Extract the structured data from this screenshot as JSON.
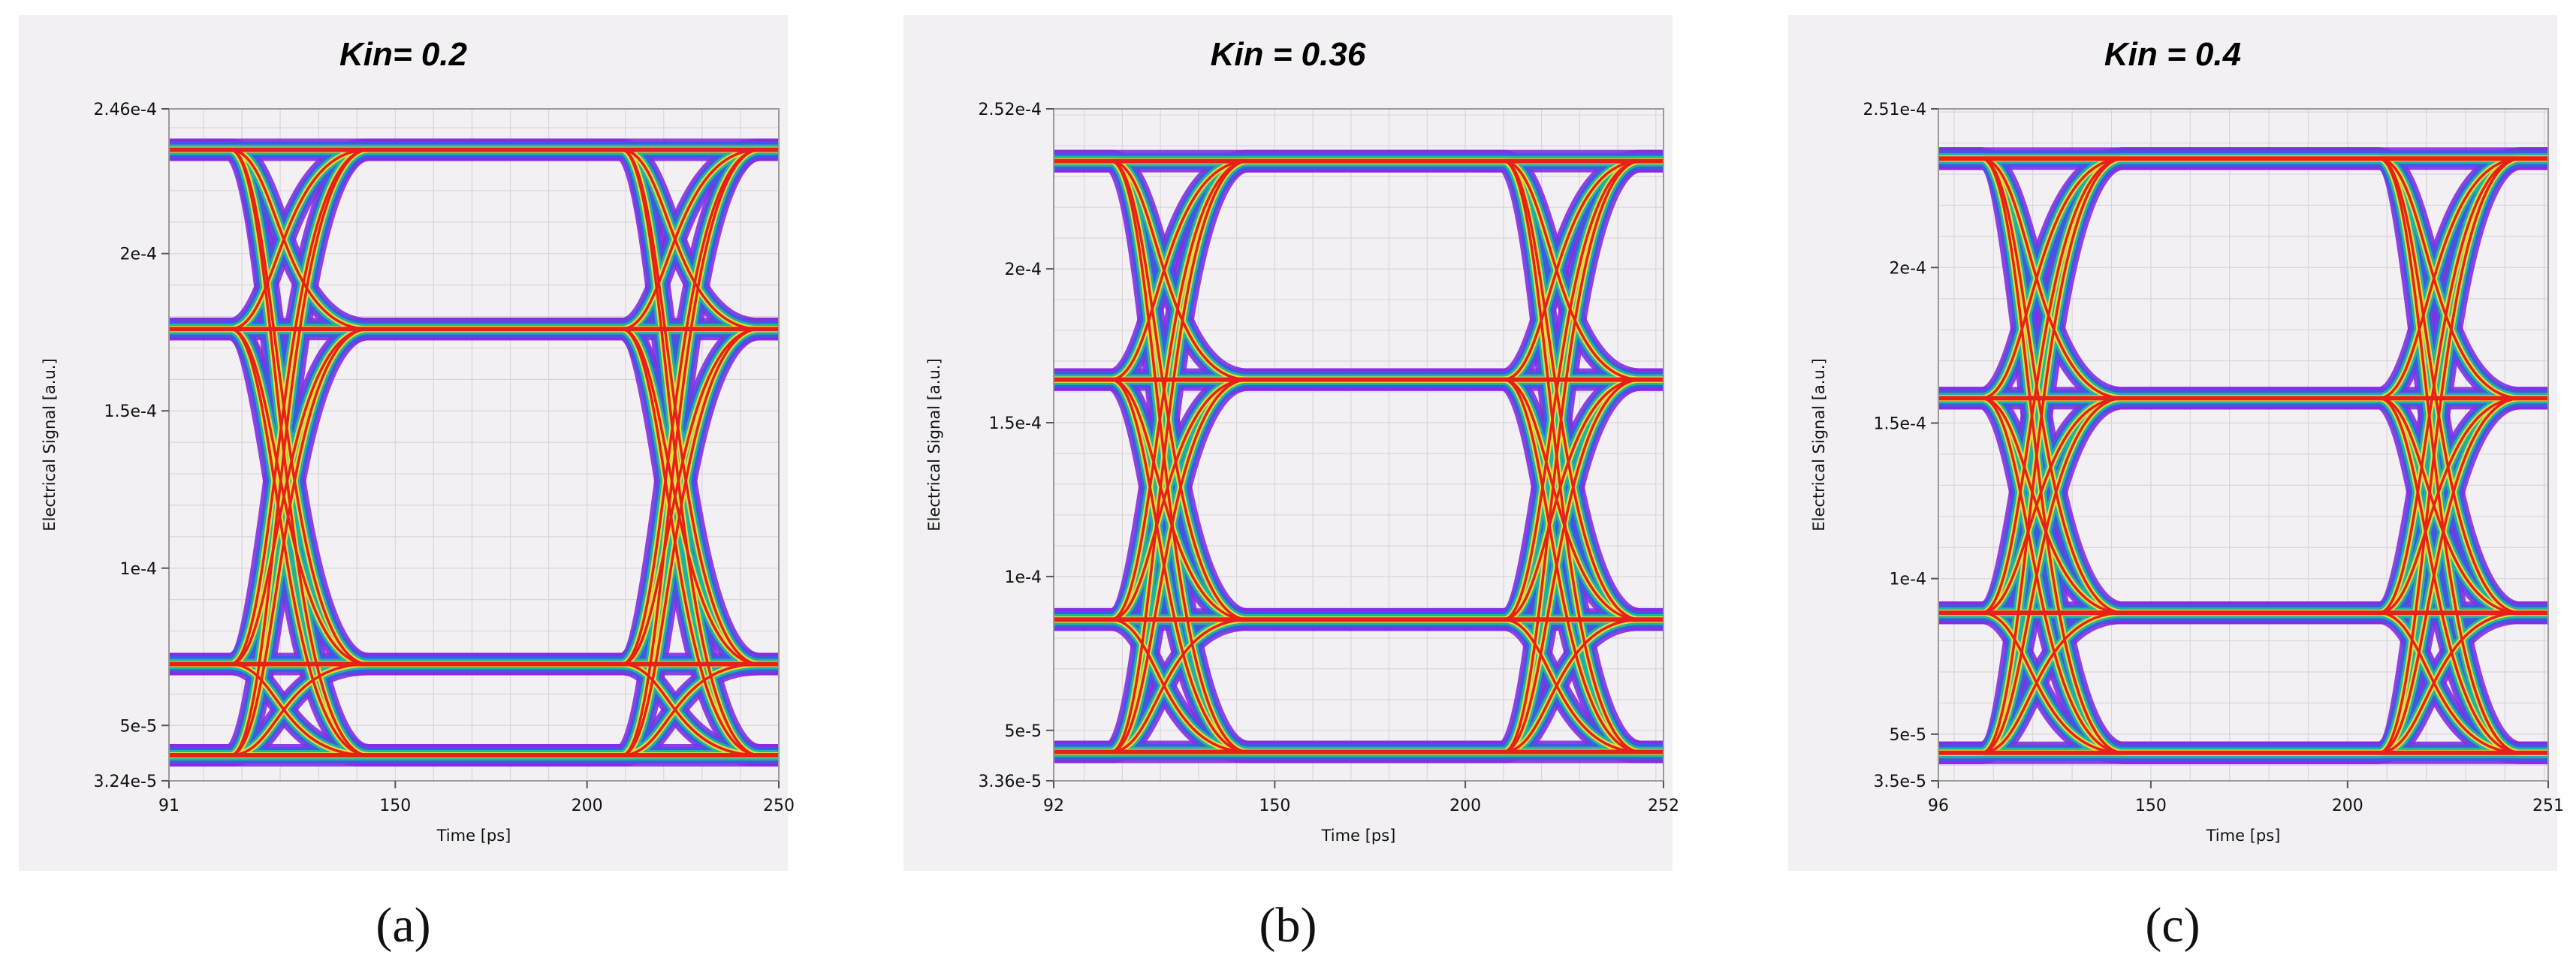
{
  "chart_data": [
    {
      "type": "line",
      "subtype": "eye-diagram",
      "panel_label": "(a)",
      "title": "Kin= 0.2",
      "xlabel": "Time [ps]",
      "ylabel": "Electrical Signal [a.u.]",
      "xlim": [
        91,
        250
      ],
      "ylim": [
        3.24e-05,
        0.000246
      ],
      "xticks": [
        {
          "v": 91,
          "label": "91"
        },
        {
          "v": 150,
          "label": "150"
        },
        {
          "v": 200,
          "label": "200"
        },
        {
          "v": 250,
          "label": "250"
        }
      ],
      "yticks": [
        {
          "v": 3.24e-05,
          "label": "3.24e-5"
        },
        {
          "v": 5e-05,
          "label": "5e-5"
        },
        {
          "v": 0.0001,
          "label": "1e-4"
        },
        {
          "v": 0.00015,
          "label": "1.5e-4"
        },
        {
          "v": 0.0002,
          "label": "2e-4"
        },
        {
          "v": 0.000246,
          "label": "2.46e-4"
        }
      ],
      "grid": true,
      "levels": [
        4.05e-05,
        6.95e-05,
        0.000176,
        0.000233
      ],
      "crossings_ps": [
        125,
        227
      ]
    },
    {
      "type": "line",
      "subtype": "eye-diagram",
      "panel_label": "(b)",
      "title": "Kin = 0.36",
      "xlabel": "Time [ps]",
      "ylabel": "Electrical Signal [a.u.]",
      "xlim": [
        92,
        252
      ],
      "ylim": [
        3.36e-05,
        0.000252
      ],
      "xticks": [
        {
          "v": 92,
          "label": "92"
        },
        {
          "v": 150,
          "label": "150"
        },
        {
          "v": 200,
          "label": "200"
        },
        {
          "v": 252,
          "label": "252"
        }
      ],
      "yticks": [
        {
          "v": 3.36e-05,
          "label": "3.36e-5"
        },
        {
          "v": 5e-05,
          "label": "5e-5"
        },
        {
          "v": 0.0001,
          "label": "1e-4"
        },
        {
          "v": 0.00015,
          "label": "1.5e-4"
        },
        {
          "v": 0.0002,
          "label": "2e-4"
        },
        {
          "v": 0.000252,
          "label": "2.52e-4"
        }
      ],
      "grid": true,
      "levels": [
        4.3e-05,
        8.6e-05,
        0.000164,
        0.000235
      ],
      "crossings_ps": [
        125,
        228
      ]
    },
    {
      "type": "line",
      "subtype": "eye-diagram",
      "panel_label": "(c)",
      "title": "Kin = 0.4",
      "xlabel": "Time [ps]",
      "ylabel": "Electrical Signal [a.u.]",
      "xlim": [
        96,
        251
      ],
      "ylim": [
        3.5e-05,
        0.000251
      ],
      "xticks": [
        {
          "v": 96,
          "label": "96"
        },
        {
          "v": 150,
          "label": "150"
        },
        {
          "v": 200,
          "label": "200"
        },
        {
          "v": 251,
          "label": "251"
        }
      ],
      "yticks": [
        {
          "v": 3.5e-05,
          "label": "3.5e-5"
        },
        {
          "v": 5e-05,
          "label": "5e-5"
        },
        {
          "v": 0.0001,
          "label": "1e-4"
        },
        {
          "v": 0.00015,
          "label": "1.5e-4"
        },
        {
          "v": 0.0002,
          "label": "2e-4"
        },
        {
          "v": 0.000251,
          "label": "2.51e-4"
        }
      ],
      "grid": true,
      "levels": [
        4.4e-05,
        8.9e-05,
        0.000158,
        0.000235
      ],
      "crossings_ps": [
        125,
        226
      ]
    }
  ],
  "colors": {
    "panel_bg": "#f2f0f3",
    "plot_bg": "#f2f0f3",
    "density_low": "#8a2be2",
    "density_mid_low": "#3f5be0",
    "density_mid": "#1fb5a0",
    "density_mid_high": "#e6e23a",
    "density_high": "#e8201a"
  }
}
